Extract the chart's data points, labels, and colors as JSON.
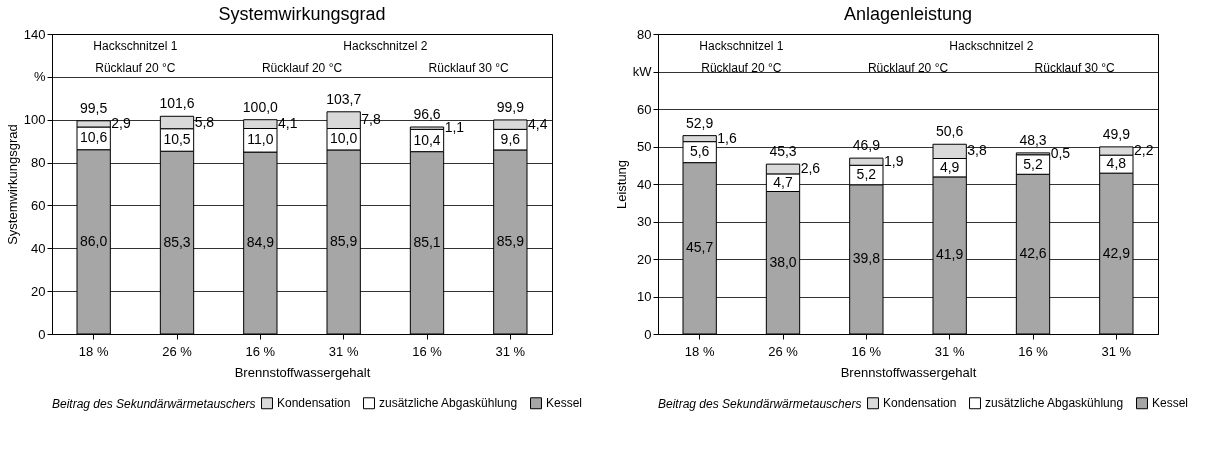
{
  "chart_data": [
    {
      "type": "bar",
      "title": "Systemwirkungsgrad",
      "xlabel": "Brennstoffwassergehalt",
      "ylabel": "Systemwirkungsgrad",
      "legend_title": "Beitrag des Sekundärwärmetauschers",
      "categories": [
        "18 %",
        "26 %",
        "16 %",
        "31 %",
        "16 %",
        "31 %"
      ],
      "stacked": true,
      "series": [
        {
          "name": "Kessel",
          "color": "#a6a6a6",
          "values": [
            86.0,
            85.3,
            84.9,
            85.9,
            85.1,
            85.9
          ],
          "value_labels": [
            "86,0",
            "85,3",
            "84,9",
            "85,9",
            "85,1",
            "85,9"
          ]
        },
        {
          "name": "zusätzliche Abgaskühlung",
          "color": "#ffffff",
          "values": [
            10.6,
            10.5,
            11.0,
            10.0,
            10.4,
            9.6
          ],
          "value_labels": [
            "10,6",
            "10,5",
            "11,0",
            "10,0",
            "10,4",
            "9,6"
          ]
        },
        {
          "name": "Kondensation",
          "color": "#d9d9d9",
          "values": [
            2.9,
            5.8,
            4.1,
            7.8,
            1.1,
            4.4
          ],
          "value_labels": [
            "2,9",
            "5,8",
            "4,1",
            "7,8",
            "1,1",
            "4,4"
          ]
        }
      ],
      "totals": [
        "99,5",
        "101,6",
        "100,0",
        "103,7",
        "96,6",
        "99,9"
      ],
      "ylim": [
        0,
        140
      ],
      "yticks": [
        0,
        20,
        40,
        60,
        80,
        100,
        {
          "value": 120,
          "label": "%"
        },
        140
      ],
      "annotations": [
        "Hackschnitzel 1",
        "Rücklauf 20 °C",
        "Hackschnitzel 2",
        "Rücklauf 20 °C",
        "Rücklauf 30 °C"
      ],
      "grid": "y",
      "legend": "bottom"
    },
    {
      "type": "bar",
      "title": "Anlagenleistung",
      "xlabel": "Brennstoffwassergehalt",
      "ylabel": "Leistung",
      "legend_title": "Beitrag des Sekundärwärmetauschers",
      "categories": [
        "18 %",
        "26 %",
        "16 %",
        "31 %",
        "16 %",
        "31 %"
      ],
      "stacked": true,
      "series": [
        {
          "name": "Kessel",
          "color": "#a6a6a6",
          "values": [
            45.7,
            38.0,
            39.8,
            41.9,
            42.6,
            42.9
          ],
          "value_labels": [
            "45,7",
            "38,0",
            "39,8",
            "41,9",
            "42,6",
            "42,9"
          ]
        },
        {
          "name": "zusätzliche Abgaskühlung",
          "color": "#ffffff",
          "values": [
            5.6,
            4.7,
            5.2,
            4.9,
            5.2,
            4.8
          ],
          "value_labels": [
            "5,6",
            "4,7",
            "5,2",
            "4,9",
            "5,2",
            "4,8"
          ]
        },
        {
          "name": "Kondensation",
          "color": "#d9d9d9",
          "values": [
            1.6,
            2.6,
            1.9,
            3.8,
            0.5,
            2.2
          ],
          "value_labels": [
            "1,6",
            "2,6",
            "1,9",
            "3,8",
            "0,5",
            "2,2"
          ]
        }
      ],
      "totals": [
        "52,9",
        "45,3",
        "46,9",
        "50,6",
        "48,3",
        "49,9"
      ],
      "ylim": [
        0,
        80
      ],
      "yticks": [
        0,
        10,
        20,
        30,
        40,
        50,
        60,
        {
          "value": 70,
          "label": "kW"
        },
        80
      ],
      "annotations": [
        "Hackschnitzel 1",
        "Rücklauf 20 °C",
        "Hackschnitzel 2",
        "Rücklauf 20 °C",
        "Rücklauf 30 °C"
      ],
      "grid": "y",
      "legend": "bottom"
    }
  ]
}
